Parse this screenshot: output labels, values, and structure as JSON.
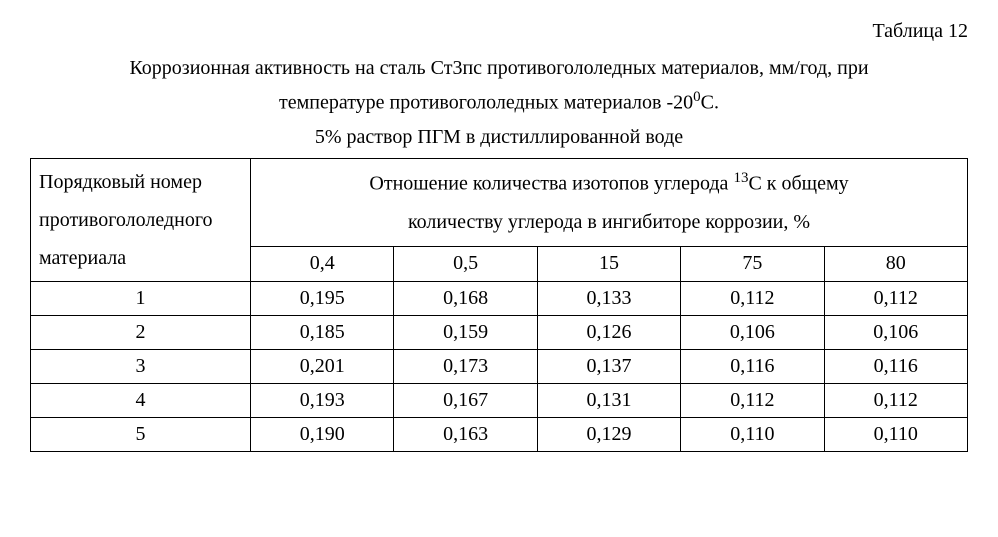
{
  "table_label": "Таблица 12",
  "caption_line1_a": "Коррозионная активность на сталь Ст3пс противогололедных материалов, мм/год, при",
  "caption_line2_a": "температуре противогололедных материалов -20",
  "caption_line2_sup": "0",
  "caption_line2_b": "С.",
  "caption_line3": "5% раствор ПГМ в дистиллированной воде",
  "row_header_l1": "Порядковый номер",
  "row_header_l2": "противогололедного",
  "row_header_l3": "материала",
  "group_header_a": "Отношение количества изотопов углерода ",
  "group_header_sup": "13",
  "group_header_b": "С к общему",
  "group_header_l2": "количеству углерода в ингибиторе коррозии, %",
  "columns": [
    "0,4",
    "0,5",
    "15",
    "75",
    "80"
  ],
  "rows": [
    {
      "n": "1",
      "v": [
        "0,195",
        "0,168",
        "0,133",
        "0,112",
        "0,112"
      ]
    },
    {
      "n": "2",
      "v": [
        "0,185",
        "0,159",
        "0,126",
        "0,106",
        "0,106"
      ]
    },
    {
      "n": "3",
      "v": [
        "0,201",
        "0,173",
        "0,137",
        "0,116",
        "0,116"
      ]
    },
    {
      "n": "4",
      "v": [
        "0,193",
        "0,167",
        "0,131",
        "0,112",
        "0,112"
      ]
    },
    {
      "n": "5",
      "v": [
        "0,190",
        "0,163",
        "0,129",
        "0,110",
        "0,110"
      ]
    }
  ],
  "style": {
    "font_family": "Times New Roman",
    "font_size_pt": 15,
    "background_color": "#ffffff",
    "border_color": "#000000",
    "text_color": "#000000"
  }
}
